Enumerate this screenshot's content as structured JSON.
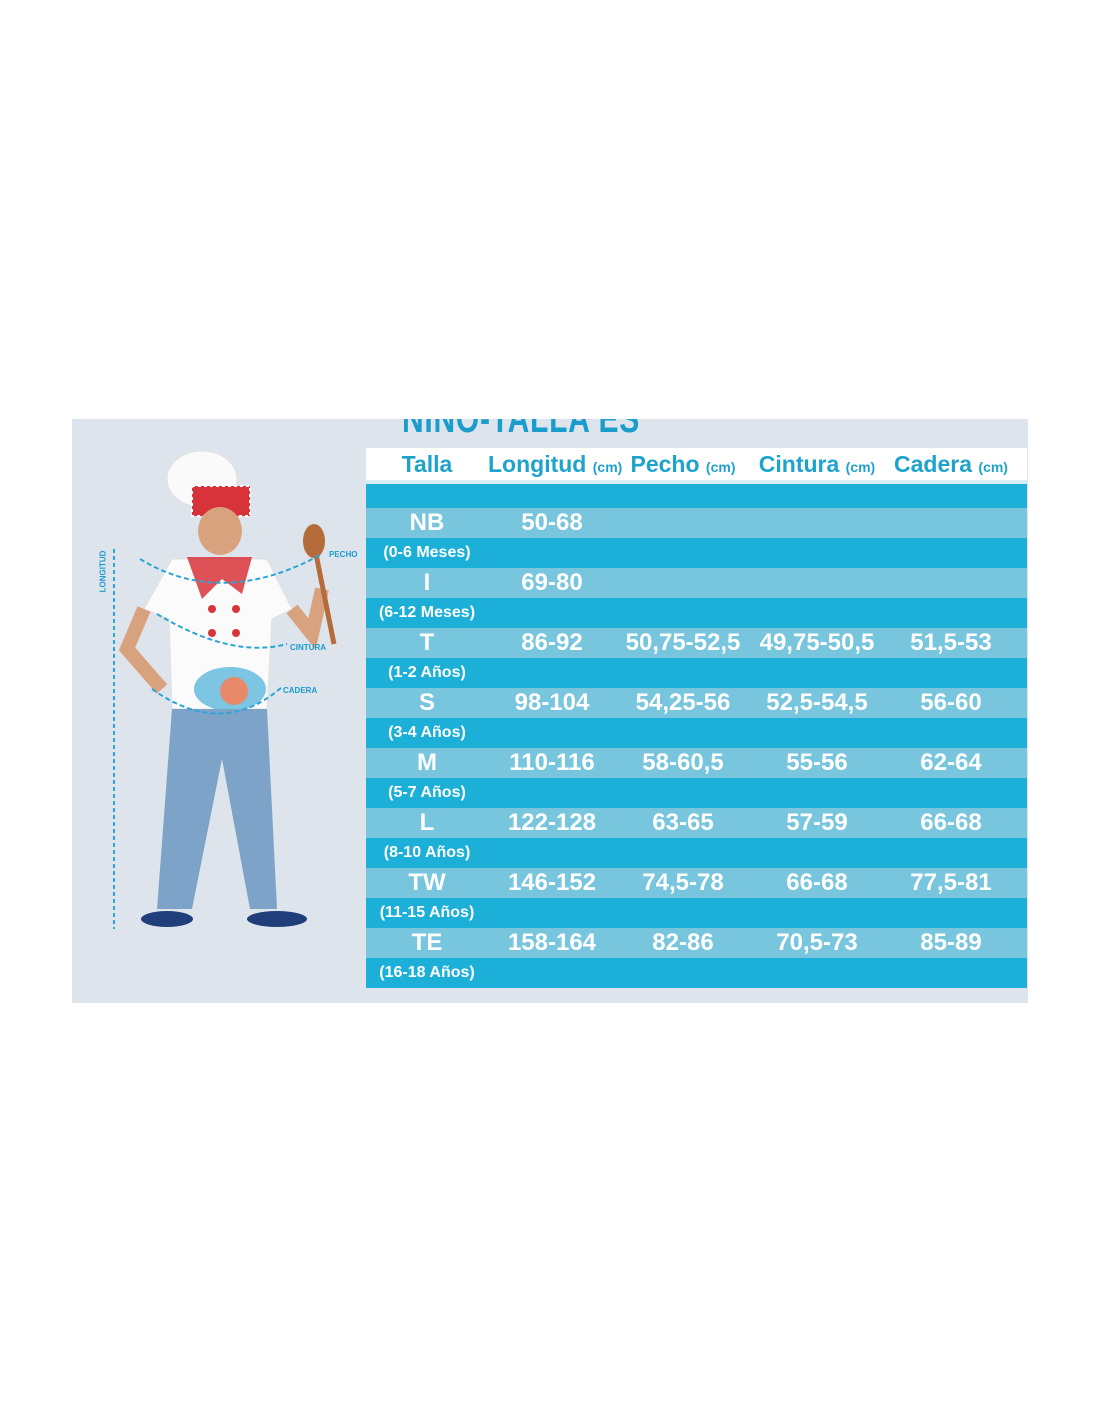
{
  "title": "NIÑO-TALLA ES",
  "colors": {
    "header_text": "#1ea3cd",
    "row_dark": "#1cb0d8",
    "row_light": "#78c5de",
    "background": "#dde4ec"
  },
  "figure_labels": {
    "length": "LONGITUD",
    "chest": "PECHO",
    "waist": "CINTURA",
    "hip": "CADERA"
  },
  "headers": [
    {
      "label": "Talla",
      "unit": ""
    },
    {
      "label": "Longitud",
      "unit": "(cm)"
    },
    {
      "label": "Pecho",
      "unit": "(cm)"
    },
    {
      "label": "Cintura",
      "unit": "(cm)"
    },
    {
      "label": "Cadera",
      "unit": "(cm)"
    }
  ],
  "rows": [
    {
      "size": "NB",
      "age": "(0-6 Meses)",
      "longitud": "50-68",
      "pecho": "",
      "cintura": "",
      "cadera": ""
    },
    {
      "size": "I",
      "age": "(6-12 Meses)",
      "longitud": "69-80",
      "pecho": "",
      "cintura": "",
      "cadera": ""
    },
    {
      "size": "T",
      "age": "(1-2 Años)",
      "longitud": "86-92",
      "pecho": "50,75-52,5",
      "cintura": "49,75-50,5",
      "cadera": "51,5-53"
    },
    {
      "size": "S",
      "age": "(3-4 Años)",
      "longitud": "98-104",
      "pecho": "54,25-56",
      "cintura": "52,5-54,5",
      "cadera": "56-60"
    },
    {
      "size": "M",
      "age": "(5-7 Años)",
      "longitud": "110-116",
      "pecho": "58-60,5",
      "cintura": "55-56",
      "cadera": "62-64"
    },
    {
      "size": "L",
      "age": "(8-10 Años)",
      "longitud": "122-128",
      "pecho": "63-65",
      "cintura": "57-59",
      "cadera": "66-68"
    },
    {
      "size": "TW",
      "age": "(11-15 Años)",
      "longitud": "146-152",
      "pecho": "74,5-78",
      "cintura": "66-68",
      "cadera": "77,5-81"
    },
    {
      "size": "TE",
      "age": "(16-18 Años)",
      "longitud": "158-164",
      "pecho": "82-86",
      "cintura": "70,5-73",
      "cadera": "85-89"
    }
  ]
}
